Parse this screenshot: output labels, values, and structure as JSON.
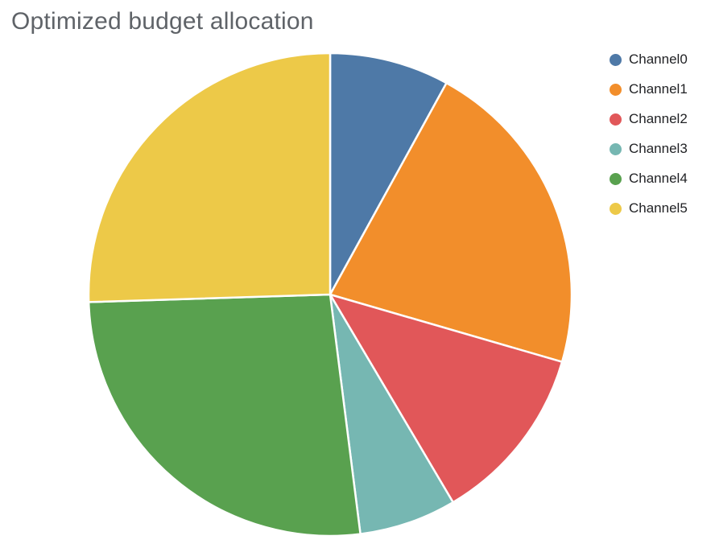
{
  "title": "Optimized budget allocation",
  "chart_data": {
    "type": "pie",
    "title": "Optimized budget allocation",
    "categories": [
      "Channel0",
      "Channel1",
      "Channel2",
      "Channel3",
      "Channel4",
      "Channel5"
    ],
    "values": [
      8,
      21.5,
      12,
      6.5,
      26.5,
      25.5
    ],
    "unit": "percent_of_total",
    "colors": [
      "#4e79a7",
      "#f28e2b",
      "#e15759",
      "#76b7b2",
      "#59a14f",
      "#edc948"
    ],
    "start_angle_deg": 0,
    "direction": "clockwise",
    "slice_border_color": "#ffffff",
    "legend_position": "right",
    "background": "#ffffff",
    "title_color": "#5f6368"
  }
}
